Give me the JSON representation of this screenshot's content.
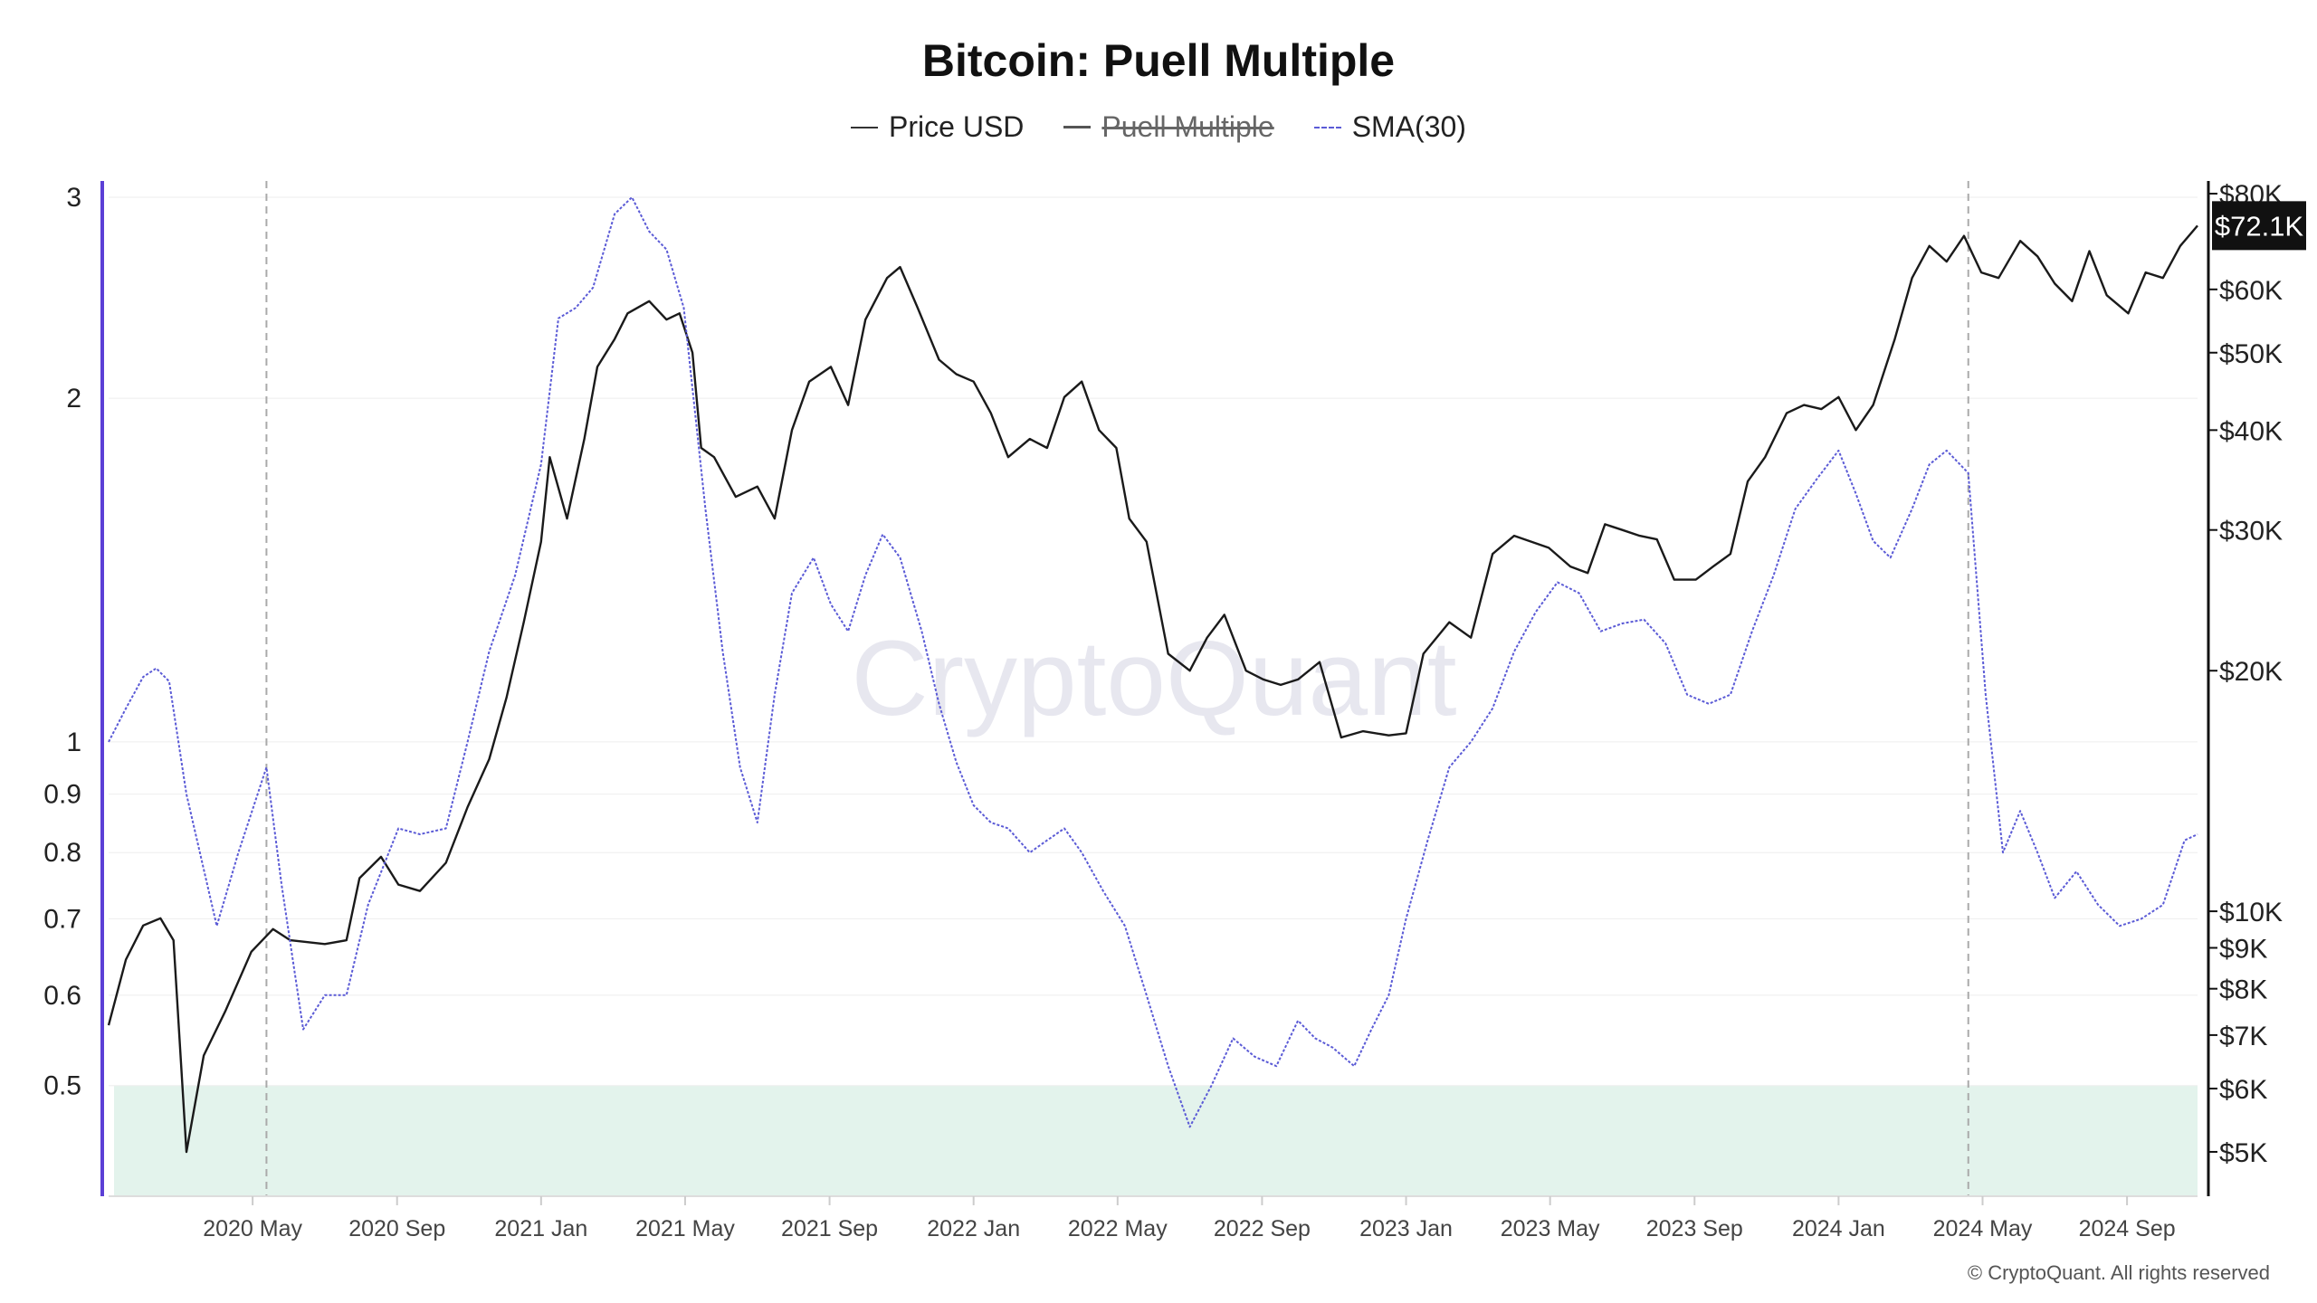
{
  "title": "Bitcoin: Puell Multiple",
  "legend": {
    "price": "Price USD",
    "puell": "Puell Multiple",
    "sma": "SMA(30)"
  },
  "watermark": "CryptoQuant",
  "copyright": "© CryptoQuant. All rights reserved",
  "colors": {
    "price": "#1a1a1a",
    "sma": "#5b5bd6",
    "zone": "#e3f3ec",
    "leftAxis": "#5b3fd6",
    "grid": "#eeeeee",
    "marker": "#aaaaaa"
  },
  "chart_data": {
    "type": "line",
    "title": "Bitcoin: Puell Multiple",
    "x_range": [
      2020.0,
      2024.83
    ],
    "x_ticks": [
      {
        "label": "2020 May",
        "t": 2020.333
      },
      {
        "label": "2020 Sep",
        "t": 2020.667
      },
      {
        "label": "2021 Jan",
        "t": 2021.0
      },
      {
        "label": "2021 May",
        "t": 2021.333
      },
      {
        "label": "2021 Sep",
        "t": 2021.667
      },
      {
        "label": "2022 Jan",
        "t": 2022.0
      },
      {
        "label": "2022 May",
        "t": 2022.333
      },
      {
        "label": "2022 Sep",
        "t": 2022.667
      },
      {
        "label": "2023 Jan",
        "t": 2023.0
      },
      {
        "label": "2023 May",
        "t": 2023.333
      },
      {
        "label": "2023 Sep",
        "t": 2023.667
      },
      {
        "label": "2024 Jan",
        "t": 2024.0
      },
      {
        "label": "2024 May",
        "t": 2024.333
      },
      {
        "label": "2024 Sep",
        "t": 2024.667
      }
    ],
    "left_axis": {
      "scale": "log",
      "range": [
        0.4,
        3.1
      ],
      "ticks": [
        {
          "label": "0.5",
          "v": 0.5
        },
        {
          "label": "0.6",
          "v": 0.6
        },
        {
          "label": "0.7",
          "v": 0.7
        },
        {
          "label": "0.8",
          "v": 0.8
        },
        {
          "label": "0.9",
          "v": 0.9
        },
        {
          "label": "1",
          "v": 1.0
        },
        {
          "label": "2",
          "v": 2.0
        },
        {
          "label": "3",
          "v": 3.0
        }
      ]
    },
    "right_axis": {
      "scale": "log",
      "range": [
        4400,
        82000
      ],
      "ticks": [
        {
          "label": "$5K",
          "v": 5000
        },
        {
          "label": "$6K",
          "v": 6000
        },
        {
          "label": "$7K",
          "v": 7000
        },
        {
          "label": "$8K",
          "v": 8000
        },
        {
          "label": "$9K",
          "v": 9000
        },
        {
          "label": "$10K",
          "v": 10000
        },
        {
          "label": "$20K",
          "v": 20000
        },
        {
          "label": "$30K",
          "v": 30000
        },
        {
          "label": "$40K",
          "v": 40000
        },
        {
          "label": "$50K",
          "v": 50000
        },
        {
          "label": "$60K",
          "v": 60000
        },
        {
          "label": "$80K",
          "v": 80000
        }
      ]
    },
    "price_badge": {
      "label": "$72.1K",
      "v": 72100
    },
    "halving_markers": [
      2020.365,
      2024.3
    ],
    "low_zone": {
      "from": 0.4,
      "to": 0.5
    },
    "series": [
      {
        "name": "Price USD",
        "axis": "right",
        "style": "solid",
        "points": [
          [
            2020.0,
            7200
          ],
          [
            2020.04,
            8700
          ],
          [
            2020.08,
            9600
          ],
          [
            2020.12,
            9800
          ],
          [
            2020.15,
            9200
          ],
          [
            2020.18,
            5000
          ],
          [
            2020.22,
            6600
          ],
          [
            2020.27,
            7500
          ],
          [
            2020.33,
            8900
          ],
          [
            2020.38,
            9500
          ],
          [
            2020.42,
            9200
          ],
          [
            2020.5,
            9100
          ],
          [
            2020.55,
            9200
          ],
          [
            2020.58,
            11000
          ],
          [
            2020.63,
            11700
          ],
          [
            2020.67,
            10800
          ],
          [
            2020.72,
            10600
          ],
          [
            2020.78,
            11500
          ],
          [
            2020.83,
            13500
          ],
          [
            2020.88,
            15500
          ],
          [
            2020.92,
            18500
          ],
          [
            2020.96,
            23000
          ],
          [
            2021.0,
            29000
          ],
          [
            2021.02,
            37000
          ],
          [
            2021.06,
            31000
          ],
          [
            2021.1,
            39000
          ],
          [
            2021.13,
            48000
          ],
          [
            2021.17,
            52000
          ],
          [
            2021.2,
            56000
          ],
          [
            2021.25,
            58000
          ],
          [
            2021.29,
            55000
          ],
          [
            2021.32,
            56000
          ],
          [
            2021.35,
            50000
          ],
          [
            2021.37,
            38000
          ],
          [
            2021.4,
            37000
          ],
          [
            2021.45,
            33000
          ],
          [
            2021.5,
            34000
          ],
          [
            2021.54,
            31000
          ],
          [
            2021.58,
            40000
          ],
          [
            2021.62,
            46000
          ],
          [
            2021.67,
            48000
          ],
          [
            2021.71,
            43000
          ],
          [
            2021.75,
            55000
          ],
          [
            2021.8,
            62000
          ],
          [
            2021.83,
            64000
          ],
          [
            2021.87,
            57000
          ],
          [
            2021.92,
            49000
          ],
          [
            2021.96,
            47000
          ],
          [
            2022.0,
            46000
          ],
          [
            2022.04,
            42000
          ],
          [
            2022.08,
            37000
          ],
          [
            2022.13,
            39000
          ],
          [
            2022.17,
            38000
          ],
          [
            2022.21,
            44000
          ],
          [
            2022.25,
            46000
          ],
          [
            2022.29,
            40000
          ],
          [
            2022.33,
            38000
          ],
          [
            2022.36,
            31000
          ],
          [
            2022.4,
            29000
          ],
          [
            2022.45,
            21000
          ],
          [
            2022.5,
            20000
          ],
          [
            2022.54,
            22000
          ],
          [
            2022.58,
            23500
          ],
          [
            2022.63,
            20000
          ],
          [
            2022.67,
            19500
          ],
          [
            2022.71,
            19200
          ],
          [
            2022.75,
            19500
          ],
          [
            2022.8,
            20500
          ],
          [
            2022.85,
            16500
          ],
          [
            2022.9,
            16800
          ],
          [
            2022.96,
            16600
          ],
          [
            2023.0,
            16700
          ],
          [
            2023.04,
            21000
          ],
          [
            2023.1,
            23000
          ],
          [
            2023.15,
            22000
          ],
          [
            2023.2,
            28000
          ],
          [
            2023.25,
            29500
          ],
          [
            2023.29,
            29000
          ],
          [
            2023.33,
            28500
          ],
          [
            2023.38,
            27000
          ],
          [
            2023.42,
            26500
          ],
          [
            2023.46,
            30500
          ],
          [
            2023.5,
            30000
          ],
          [
            2023.54,
            29500
          ],
          [
            2023.58,
            29200
          ],
          [
            2023.62,
            26000
          ],
          [
            2023.67,
            26000
          ],
          [
            2023.71,
            27000
          ],
          [
            2023.75,
            28000
          ],
          [
            2023.79,
            34500
          ],
          [
            2023.83,
            37000
          ],
          [
            2023.88,
            42000
          ],
          [
            2023.92,
            43000
          ],
          [
            2023.96,
            42500
          ],
          [
            2024.0,
            44000
          ],
          [
            2024.04,
            40000
          ],
          [
            2024.08,
            43000
          ],
          [
            2024.13,
            52000
          ],
          [
            2024.17,
            62000
          ],
          [
            2024.21,
            68000
          ],
          [
            2024.25,
            65000
          ],
          [
            2024.29,
            70000
          ],
          [
            2024.33,
            63000
          ],
          [
            2024.37,
            62000
          ],
          [
            2024.42,
            69000
          ],
          [
            2024.46,
            66000
          ],
          [
            2024.5,
            61000
          ],
          [
            2024.54,
            58000
          ],
          [
            2024.58,
            67000
          ],
          [
            2024.62,
            59000
          ],
          [
            2024.67,
            56000
          ],
          [
            2024.71,
            63000
          ],
          [
            2024.75,
            62000
          ],
          [
            2024.79,
            68000
          ],
          [
            2024.83,
            72100
          ]
        ]
      },
      {
        "name": "SMA(30)",
        "axis": "left",
        "style": "dashed",
        "points": [
          [
            2020.0,
            1.0
          ],
          [
            2020.04,
            1.07
          ],
          [
            2020.08,
            1.14
          ],
          [
            2020.11,
            1.16
          ],
          [
            2020.14,
            1.13
          ],
          [
            2020.18,
            0.9
          ],
          [
            2020.25,
            0.69
          ],
          [
            2020.3,
            0.8
          ],
          [
            2020.365,
            0.95
          ],
          [
            2020.4,
            0.75
          ],
          [
            2020.45,
            0.56
          ],
          [
            2020.5,
            0.6
          ],
          [
            2020.55,
            0.6
          ],
          [
            2020.6,
            0.72
          ],
          [
            2020.67,
            0.84
          ],
          [
            2020.72,
            0.83
          ],
          [
            2020.78,
            0.84
          ],
          [
            2020.83,
            1.0
          ],
          [
            2020.88,
            1.2
          ],
          [
            2020.94,
            1.4
          ],
          [
            2021.0,
            1.75
          ],
          [
            2021.04,
            2.35
          ],
          [
            2021.08,
            2.4
          ],
          [
            2021.12,
            2.5
          ],
          [
            2021.17,
            2.9
          ],
          [
            2021.21,
            3.0
          ],
          [
            2021.25,
            2.8
          ],
          [
            2021.29,
            2.7
          ],
          [
            2021.33,
            2.4
          ],
          [
            2021.38,
            1.6
          ],
          [
            2021.42,
            1.2
          ],
          [
            2021.46,
            0.95
          ],
          [
            2021.5,
            0.85
          ],
          [
            2021.54,
            1.1
          ],
          [
            2021.58,
            1.35
          ],
          [
            2021.63,
            1.45
          ],
          [
            2021.67,
            1.32
          ],
          [
            2021.71,
            1.25
          ],
          [
            2021.75,
            1.4
          ],
          [
            2021.79,
            1.52
          ],
          [
            2021.83,
            1.45
          ],
          [
            2021.88,
            1.25
          ],
          [
            2021.92,
            1.08
          ],
          [
            2021.96,
            0.96
          ],
          [
            2022.0,
            0.88
          ],
          [
            2022.04,
            0.85
          ],
          [
            2022.08,
            0.84
          ],
          [
            2022.13,
            0.8
          ],
          [
            2022.17,
            0.82
          ],
          [
            2022.21,
            0.84
          ],
          [
            2022.25,
            0.8
          ],
          [
            2022.3,
            0.74
          ],
          [
            2022.35,
            0.69
          ],
          [
            2022.4,
            0.6
          ],
          [
            2022.45,
            0.52
          ],
          [
            2022.5,
            0.46
          ],
          [
            2022.55,
            0.5
          ],
          [
            2022.6,
            0.55
          ],
          [
            2022.65,
            0.53
          ],
          [
            2022.7,
            0.52
          ],
          [
            2022.75,
            0.57
          ],
          [
            2022.79,
            0.55
          ],
          [
            2022.83,
            0.54
          ],
          [
            2022.88,
            0.52
          ],
          [
            2022.92,
            0.56
          ],
          [
            2022.96,
            0.6
          ],
          [
            2023.0,
            0.7
          ],
          [
            2023.05,
            0.82
          ],
          [
            2023.1,
            0.95
          ],
          [
            2023.15,
            1.0
          ],
          [
            2023.2,
            1.07
          ],
          [
            2023.25,
            1.2
          ],
          [
            2023.3,
            1.3
          ],
          [
            2023.35,
            1.38
          ],
          [
            2023.4,
            1.35
          ],
          [
            2023.45,
            1.25
          ],
          [
            2023.5,
            1.27
          ],
          [
            2023.55,
            1.28
          ],
          [
            2023.6,
            1.22
          ],
          [
            2023.65,
            1.1
          ],
          [
            2023.7,
            1.08
          ],
          [
            2023.75,
            1.1
          ],
          [
            2023.8,
            1.25
          ],
          [
            2023.85,
            1.4
          ],
          [
            2023.9,
            1.6
          ],
          [
            2023.95,
            1.7
          ],
          [
            2024.0,
            1.8
          ],
          [
            2024.04,
            1.65
          ],
          [
            2024.08,
            1.5
          ],
          [
            2024.12,
            1.45
          ],
          [
            2024.17,
            1.6
          ],
          [
            2024.21,
            1.75
          ],
          [
            2024.25,
            1.8
          ],
          [
            2024.3,
            1.72
          ],
          [
            2024.34,
            1.1
          ],
          [
            2024.38,
            0.8
          ],
          [
            2024.42,
            0.87
          ],
          [
            2024.46,
            0.8
          ],
          [
            2024.5,
            0.73
          ],
          [
            2024.55,
            0.77
          ],
          [
            2024.6,
            0.72
          ],
          [
            2024.65,
            0.69
          ],
          [
            2024.7,
            0.7
          ],
          [
            2024.75,
            0.72
          ],
          [
            2024.8,
            0.82
          ],
          [
            2024.83,
            0.83
          ]
        ]
      }
    ]
  }
}
